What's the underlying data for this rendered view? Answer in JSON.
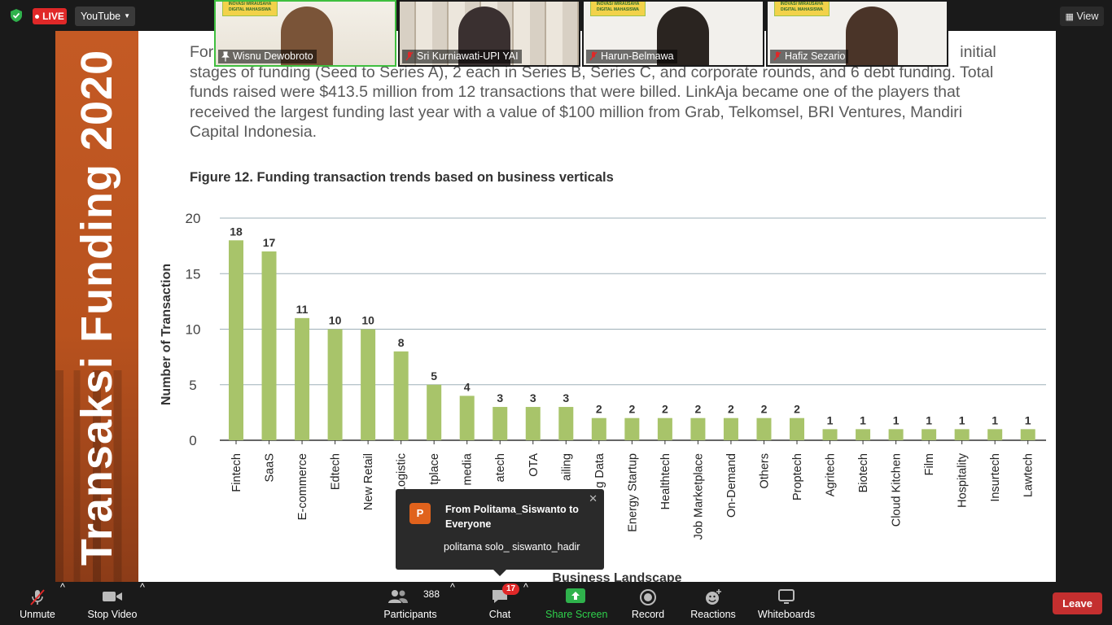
{
  "topbar": {
    "live_label": "LIVE",
    "stream_target": "YouTube",
    "view_label": "View"
  },
  "participants_tiles": [
    {
      "name": "Wisnu Dewobroto",
      "muted": false,
      "active": true
    },
    {
      "name": "Sri Kurniawati-UPI YAI",
      "muted": true,
      "active": false
    },
    {
      "name": "Harun-Belmawa",
      "muted": true,
      "active": false
    },
    {
      "name": "Hafiz Sezario",
      "muted": true,
      "active": false
    }
  ],
  "slide": {
    "side_title": "Transaksi Funding 2020",
    "body_lines": [
      "For",
      "stages of funding (Seed to Series A), 2 each in Series B, Series C, and corporate rounds, and 6 debt funding. Total",
      "funds raised were $413.5 million from 12 transactions that were billed. LinkAja became one of the players that",
      "received the largest funding last year with a value of $100 million from Grab, Telkomsel, BRI Ventures, Mandiri",
      "Capital Indonesia."
    ],
    "body_line0_tail": "initial",
    "figure_title": "Figure 12. Funding transaction trends based on business verticals",
    "accent_color": "#c45a24"
  },
  "chart_data": {
    "type": "bar",
    "bar_color": "#a8c46a",
    "ylabel": "Number of Transaction",
    "xlabel": "Business Landscape",
    "ylim": [
      0,
      20
    ],
    "yticks": [
      "0",
      "5",
      "10",
      "15",
      "20"
    ],
    "grid": true,
    "categories": [
      "Fintech",
      "SaaS",
      "E-commerce",
      "Edtech",
      "New Retail",
      "Logistic",
      "tplace",
      "media",
      "atech",
      "OTA",
      "ailing",
      "g Data",
      "Energy  Startup",
      "Healthtech",
      "Job Marketplace",
      "On-Demand",
      "Others",
      "Proptech",
      "Agritech",
      "Biotech",
      "Cloud Kitchen",
      "Film",
      "Hospitality",
      "Insurtech",
      "Lawtech"
    ],
    "values": [
      18,
      17,
      11,
      10,
      10,
      8,
      5,
      4,
      3,
      3,
      3,
      2,
      2,
      2,
      2,
      2,
      2,
      2,
      1,
      1,
      1,
      1,
      1,
      1,
      1
    ],
    "value_labels": [
      "18",
      "17",
      "11",
      "10",
      "10",
      "8",
      "5",
      "4",
      "3",
      "3",
      "3",
      "2",
      "2",
      "2",
      "2",
      "2",
      "2",
      "2",
      "1",
      "1",
      "1",
      "1",
      "1",
      "1",
      "1"
    ]
  },
  "chat_popup": {
    "avatar_letter": "P",
    "from": "From Politama_Siswanto to Everyone",
    "message": "politama solo_ siswanto_hadir"
  },
  "toolbar": {
    "unmute": "Unmute",
    "stop_video": "Stop Video",
    "participants": "Participants",
    "participant_count": "388",
    "chat": "Chat",
    "chat_badge": "17",
    "share_screen": "Share Screen",
    "record": "Record",
    "reactions": "Reactions",
    "whiteboards": "Whiteboards",
    "leave": "Leave"
  }
}
